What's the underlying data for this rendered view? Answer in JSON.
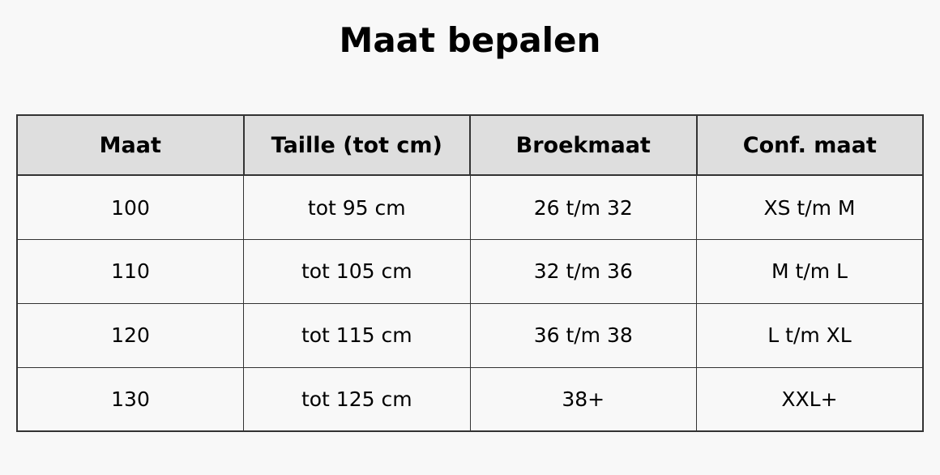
{
  "title": "Maat bepalen",
  "colors": {
    "page_bg": "#f8f8f8",
    "header_bg": "#dedede",
    "border": "#333333",
    "text": "#000000"
  },
  "table": {
    "headers": [
      "Maat",
      "Taille (tot cm)",
      "Broekmaat",
      "Conf. maat"
    ],
    "rows": [
      [
        "100",
        "tot 95 cm",
        "26 t/m 32",
        "XS t/m M"
      ],
      [
        "110",
        "tot 105 cm",
        "32 t/m 36",
        "M t/m L"
      ],
      [
        "120",
        "tot 115 cm",
        "36 t/m 38",
        "L t/m XL"
      ],
      [
        "130",
        "tot 125 cm",
        "38+",
        "XXL+"
      ]
    ]
  }
}
